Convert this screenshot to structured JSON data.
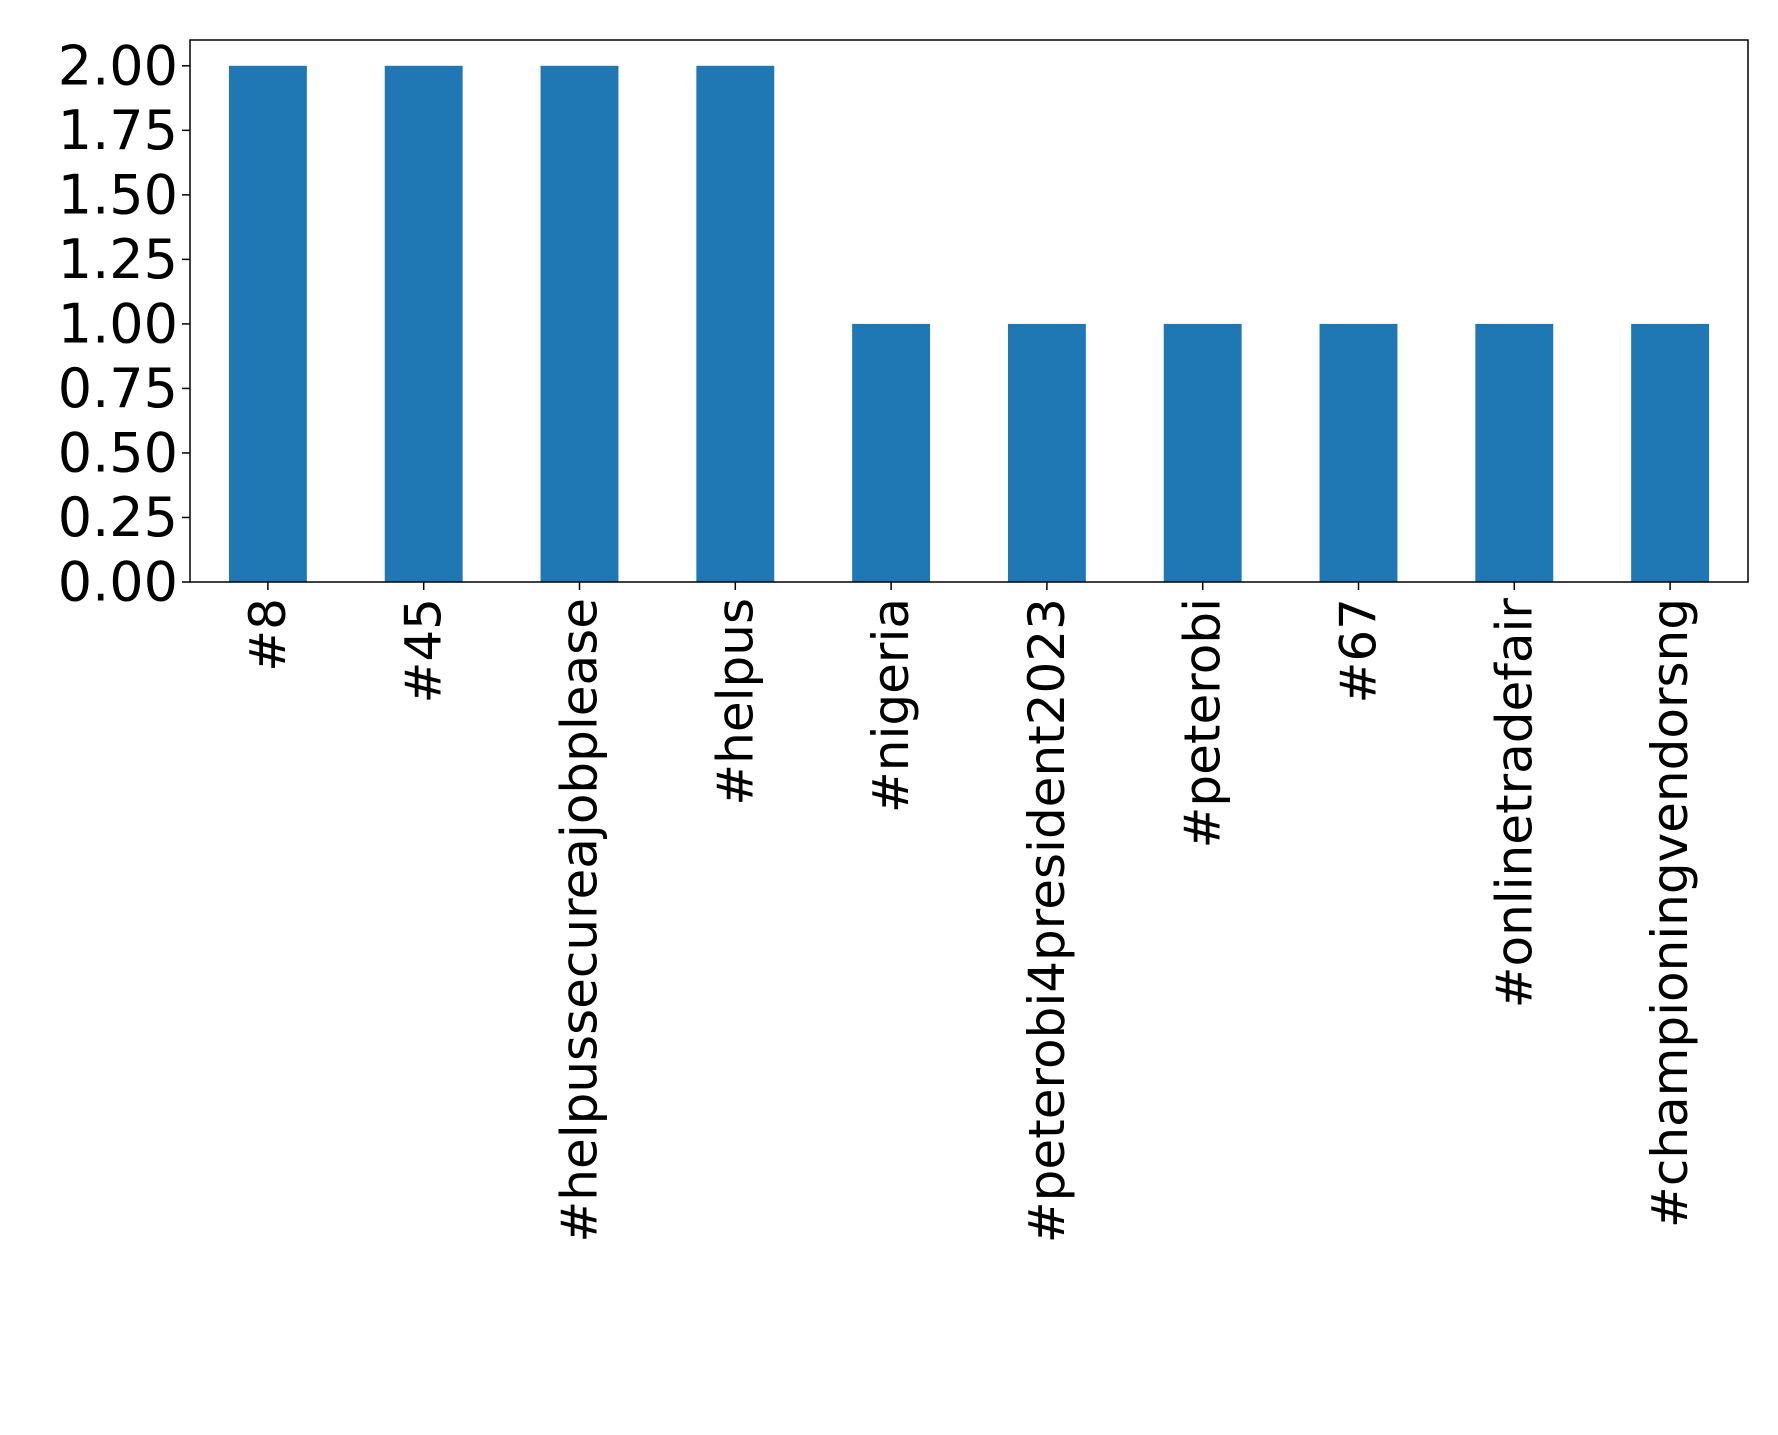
{
  "chart_data": {
    "type": "bar",
    "title": "",
    "xlabel": "",
    "ylabel": "",
    "categories": [
      "#8",
      "#45",
      "#helpussecureajobplease",
      "#helpus",
      "#nigeria",
      "#peterobi4president2023",
      "#peterobi",
      "#67",
      "#onlinetradefair",
      "#championingvendorsng"
    ],
    "values": [
      2,
      2,
      2,
      2,
      1,
      1,
      1,
      1,
      1,
      1
    ],
    "ylim": [
      0,
      2.1
    ],
    "yticks": [
      "0.00",
      "0.25",
      "0.50",
      "0.75",
      "1.00",
      "1.25",
      "1.50",
      "1.75",
      "2.00"
    ],
    "grid": false,
    "legend": "none",
    "colors": {
      "bar": "#1f77b4",
      "axis": "#000000"
    }
  }
}
